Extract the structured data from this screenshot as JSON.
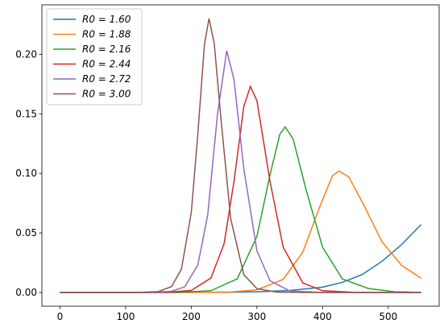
{
  "chart_data": {
    "type": "line",
    "xlim": [
      -27.5,
      577.5
    ],
    "xticks": [
      0,
      100,
      200,
      300,
      400,
      500
    ],
    "ylim": [
      -0.0115,
      0.2415
    ],
    "yticks": [
      {
        "value": 0,
        "label": "0.00"
      },
      {
        "value": 0.05,
        "label": "0.05"
      },
      {
        "value": 0.1,
        "label": "0.10"
      },
      {
        "value": 0.15,
        "label": "0.15"
      },
      {
        "value": 0.2,
        "label": "0.20"
      }
    ],
    "legend": "upper left",
    "series": [
      {
        "name": "R0 = 1.60",
        "color": "#1f77b4",
        "x": [
          0,
          250,
          300,
          350,
          400,
          430,
          460,
          490,
          520,
          550
        ],
        "values": [
          0,
          0.0002,
          0.0006,
          0.0017,
          0.0045,
          0.0085,
          0.015,
          0.026,
          0.04,
          0.057
        ]
      },
      {
        "name": "R0 = 1.88",
        "color": "#ff7f0e",
        "x": [
          0,
          200,
          260,
          300,
          340,
          370,
          395,
          415,
          425,
          440,
          465,
          490,
          520,
          550
        ],
        "values": [
          0,
          3e-05,
          0.0004,
          0.0022,
          0.011,
          0.034,
          0.071,
          0.098,
          0.102,
          0.097,
          0.071,
          0.043,
          0.023,
          0.012
        ]
      },
      {
        "name": "R0 = 2.16",
        "color": "#2ca02c",
        "x": [
          0,
          180,
          230,
          270,
          300,
          320,
          335,
          343,
          355,
          375,
          400,
          430,
          470,
          510,
          550
        ],
        "values": [
          0,
          0.0001,
          0.0015,
          0.0115,
          0.047,
          0.099,
          0.133,
          0.139,
          0.129,
          0.086,
          0.038,
          0.0114,
          0.0033,
          0.0006,
          0.0001
        ]
      },
      {
        "name": "R0 = 2.44",
        "color": "#d62728",
        "x": [
          0,
          160,
          200,
          230,
          250,
          265,
          280,
          290,
          300,
          320,
          340,
          370,
          400,
          450,
          550
        ],
        "values": [
          0,
          0.0001,
          0.0017,
          0.0122,
          0.041,
          0.093,
          0.156,
          0.173,
          0.161,
          0.093,
          0.038,
          0.008,
          0.0015,
          0.0001,
          0
        ]
      },
      {
        "name": "R0 = 2.72",
        "color": "#9467bd",
        "x": [
          0,
          140,
          170,
          190,
          210,
          225,
          240,
          254,
          265,
          280,
          300,
          320,
          350,
          400,
          550
        ],
        "values": [
          0,
          0.0001,
          0.001,
          0.0048,
          0.023,
          0.065,
          0.15,
          0.203,
          0.179,
          0.104,
          0.035,
          0.0098,
          0.0013,
          4e-05,
          0
        ]
      },
      {
        "name": "R0 = 3.00",
        "color": "#8c564b",
        "x": [
          0,
          120,
          150,
          170,
          185,
          200,
          210,
          220,
          227,
          235,
          245,
          260,
          280,
          300,
          330,
          380,
          450,
          550
        ],
        "values": [
          0,
          5e-05,
          0.0008,
          0.005,
          0.0196,
          0.067,
          0.133,
          0.208,
          0.23,
          0.209,
          0.147,
          0.062,
          0.015,
          0.0033,
          0.0003,
          0,
          0,
          0
        ]
      }
    ]
  }
}
